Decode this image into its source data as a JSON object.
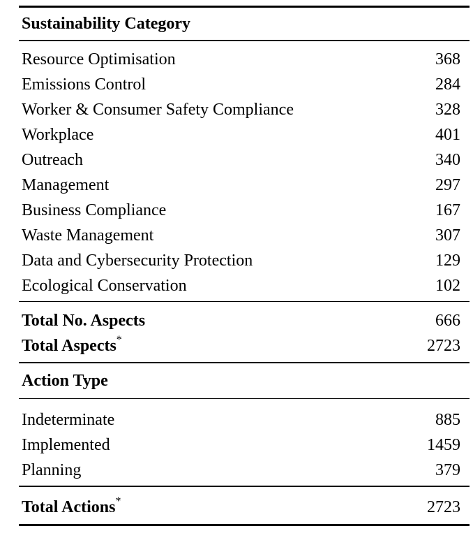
{
  "sections": [
    {
      "header": "Sustainability Category",
      "rows": [
        {
          "label": "Resource Optimisation",
          "value": "368"
        },
        {
          "label": "Emissions Control",
          "value": "284"
        },
        {
          "label": "Worker & Consumer Safety Compliance",
          "value": "328"
        },
        {
          "label": "Workplace",
          "value": "401"
        },
        {
          "label": "Outreach",
          "value": "340"
        },
        {
          "label": "Management",
          "value": "297"
        },
        {
          "label": "Business Compliance",
          "value": "167"
        },
        {
          "label": "Waste Management",
          "value": "307"
        },
        {
          "label": "Data and Cybersecurity Protection",
          "value": "129"
        },
        {
          "label": "Ecological Conservation",
          "value": "102"
        }
      ],
      "totals": [
        {
          "label": "Total No. Aspects",
          "sup": "",
          "value": "666"
        },
        {
          "label": "Total Aspects",
          "sup": "*",
          "value": "2723"
        }
      ]
    },
    {
      "header": "Action Type",
      "rows": [
        {
          "label": "Indeterminate",
          "value": "885"
        },
        {
          "label": "Implemented",
          "value": "1459"
        },
        {
          "label": "Planning",
          "value": "379"
        }
      ],
      "totals": [
        {
          "label": "Total Actions",
          "sup": "*",
          "value": "2723"
        }
      ]
    }
  ],
  "colors": {
    "text": "#000000",
    "background": "#ffffff",
    "rule": "#000000"
  }
}
